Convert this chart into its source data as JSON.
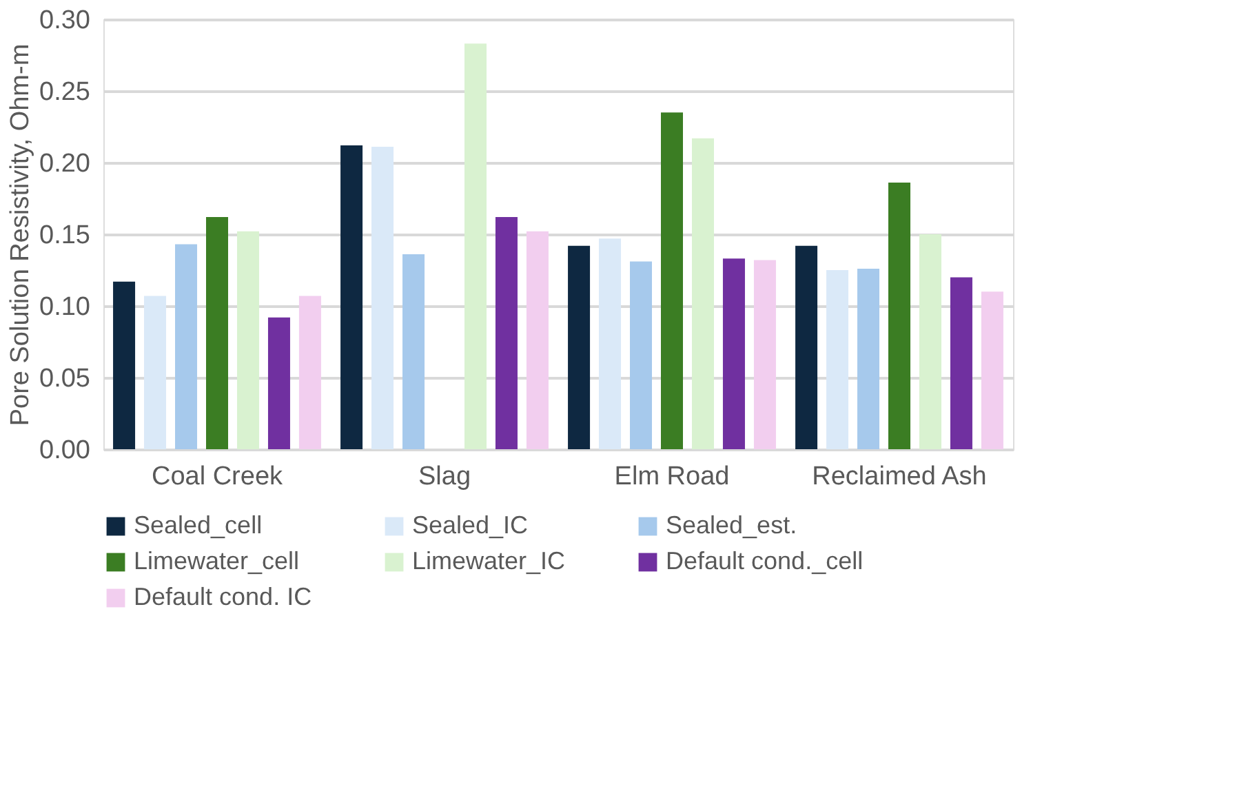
{
  "chart_data": {
    "type": "bar",
    "ylabel": "Pore Solution Resistivity, Ohm-m",
    "categories": [
      "Coal Creek",
      "Slag",
      "Elm Road",
      "Reclaimed Ash"
    ],
    "series": [
      {
        "name": "Sealed_cell",
        "color": "#0e2841",
        "values": [
          0.117,
          0.212,
          0.142,
          0.142
        ]
      },
      {
        "name": "Sealed_IC",
        "color": "#dae9f8",
        "values": [
          0.107,
          0.211,
          0.147,
          0.125
        ]
      },
      {
        "name": "Sealed_est.",
        "color": "#a6c9ec",
        "values": [
          0.143,
          0.136,
          0.131,
          0.126
        ]
      },
      {
        "name": "Limewater_cell",
        "color": "#3b7d23",
        "values": [
          0.162,
          null,
          0.235,
          0.186
        ]
      },
      {
        "name": "Limewater_IC",
        "color": "#d9f2d0",
        "values": [
          0.152,
          0.283,
          0.217,
          0.15
        ]
      },
      {
        "name": "Default cond._cell",
        "color": "#7030a0",
        "values": [
          0.092,
          0.162,
          0.133,
          0.12
        ]
      },
      {
        "name": "Default cond. IC",
        "color": "#f2ceef",
        "values": [
          0.107,
          0.152,
          0.132,
          0.11
        ]
      }
    ],
    "ylim": [
      0,
      0.3
    ],
    "yticks": [
      {
        "value": 0,
        "label": "0.00"
      },
      {
        "value": 0.05,
        "label": "0.05"
      },
      {
        "value": 0.1,
        "label": "0.10"
      },
      {
        "value": 0.15,
        "label": "0.15"
      },
      {
        "value": 0.2,
        "label": "0.20"
      },
      {
        "value": 0.25,
        "label": "0.25"
      },
      {
        "value": 0.3,
        "label": "0.30"
      }
    ],
    "grid": "y",
    "legend": "bottom"
  }
}
